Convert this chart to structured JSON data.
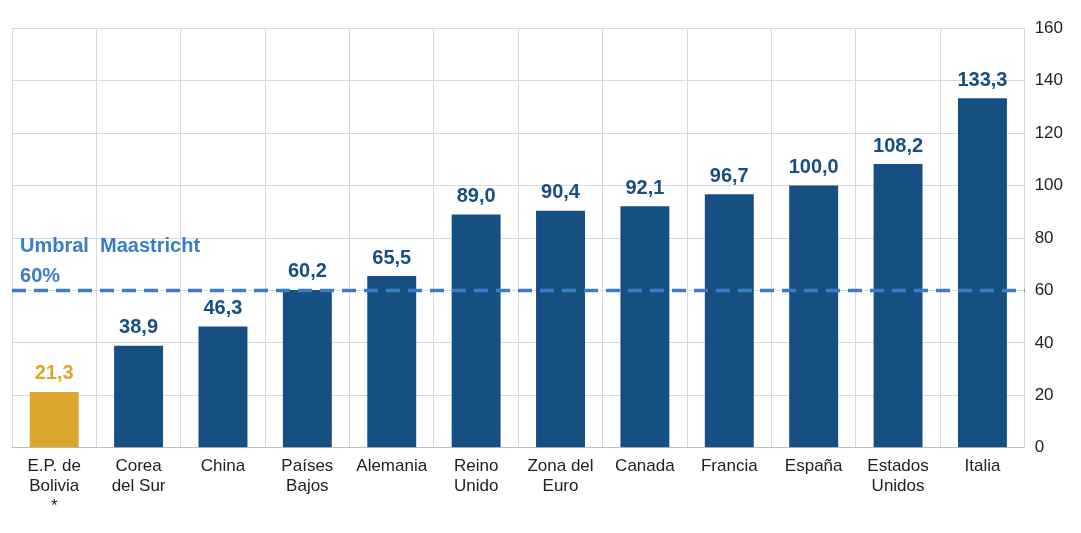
{
  "chart_data": {
    "type": "bar",
    "categories": [
      "E.P. de Bolivia *",
      "Corea del Sur",
      "China",
      "Países Bajos",
      "Alemania",
      "Reino Unido",
      "Zona del Euro",
      "Canada",
      "Francia",
      "España",
      "Estados Unidos",
      "Italia"
    ],
    "values": [
      21.3,
      38.9,
      46.3,
      60.2,
      65.5,
      89.0,
      90.4,
      92.1,
      96.7,
      100.0,
      108.2,
      133.3
    ],
    "colors": [
      "#daa62c",
      "#164f82",
      "#164f82",
      "#164f82",
      "#164f82",
      "#164f82",
      "#164f82",
      "#164f82",
      "#164f82",
      "#164f82",
      "#164f82",
      "#164f82"
    ],
    "value_labels": [
      "21,3",
      "38,9",
      "46,3",
      "60,2",
      "65,5",
      "89,0",
      "90,4",
      "92,1",
      "96,7",
      "100,0",
      "108,2",
      "133,3"
    ],
    "ylim": [
      0,
      160
    ],
    "yticks": [
      0,
      20,
      40,
      60,
      80,
      100,
      120,
      140,
      160
    ],
    "grid": true,
    "ref_lines": [
      {
        "axis": "y",
        "value": 60,
        "label": "Umbral  Maastricht 60%",
        "color": "#3a7cc9",
        "line_style": "dashed"
      }
    ]
  }
}
